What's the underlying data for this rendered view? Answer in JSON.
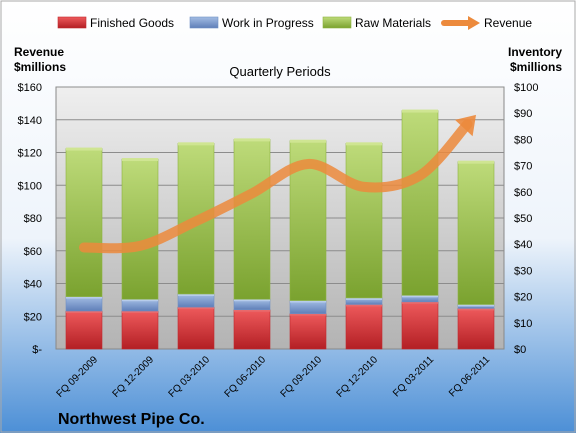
{
  "chart_data": {
    "type": "bar",
    "stacked": true,
    "company": "Northwest Pipe Co.",
    "x_title": "Quarterly Periods",
    "left_axis_label": [
      "Revenue",
      "$millions"
    ],
    "right_axis_label": [
      "Inventory",
      "$millions"
    ],
    "categories": [
      "FQ 09-2009",
      "FQ 12-2009",
      "FQ 03-2010",
      "FQ 06-2010",
      "FQ 09-2010",
      "FQ 12-2010",
      "FQ 03-2011",
      "FQ 06-2011"
    ],
    "left_ticks": [
      "$-",
      "$20",
      "$40",
      "$60",
      "$80",
      "$100",
      "$120",
      "$140",
      "$160"
    ],
    "right_ticks": [
      "$0",
      "$10",
      "$20",
      "$30",
      "$40",
      "$50",
      "$60",
      "$70",
      "$80",
      "$90",
      "$100"
    ],
    "ylim_left": [
      0,
      160
    ],
    "ylim_right": [
      0,
      100
    ],
    "grid": true,
    "legend_position": "top",
    "series": [
      {
        "name": "Finished Goods",
        "axis": "right",
        "color": "#c0282d",
        "values": [
          14.5,
          14.5,
          16,
          15,
          13.5,
          17,
          18,
          15.5
        ]
      },
      {
        "name": "Work in Progress",
        "axis": "right",
        "color": "#6f8fc4",
        "values": [
          5.5,
          4.5,
          5,
          4,
          5,
          2.5,
          2.5,
          1.5
        ]
      },
      {
        "name": "Raw Materials",
        "axis": "right",
        "color": "#8db23f",
        "values": [
          56.5,
          53.5,
          57.5,
          61,
          61,
          59,
          70.5,
          54.5
        ]
      },
      {
        "name": "Revenue",
        "axis": "left",
        "type": "line",
        "color": "#ec8a3c",
        "values": [
          62,
          63,
          78,
          95,
          113,
          99,
          106,
          143
        ]
      }
    ]
  }
}
